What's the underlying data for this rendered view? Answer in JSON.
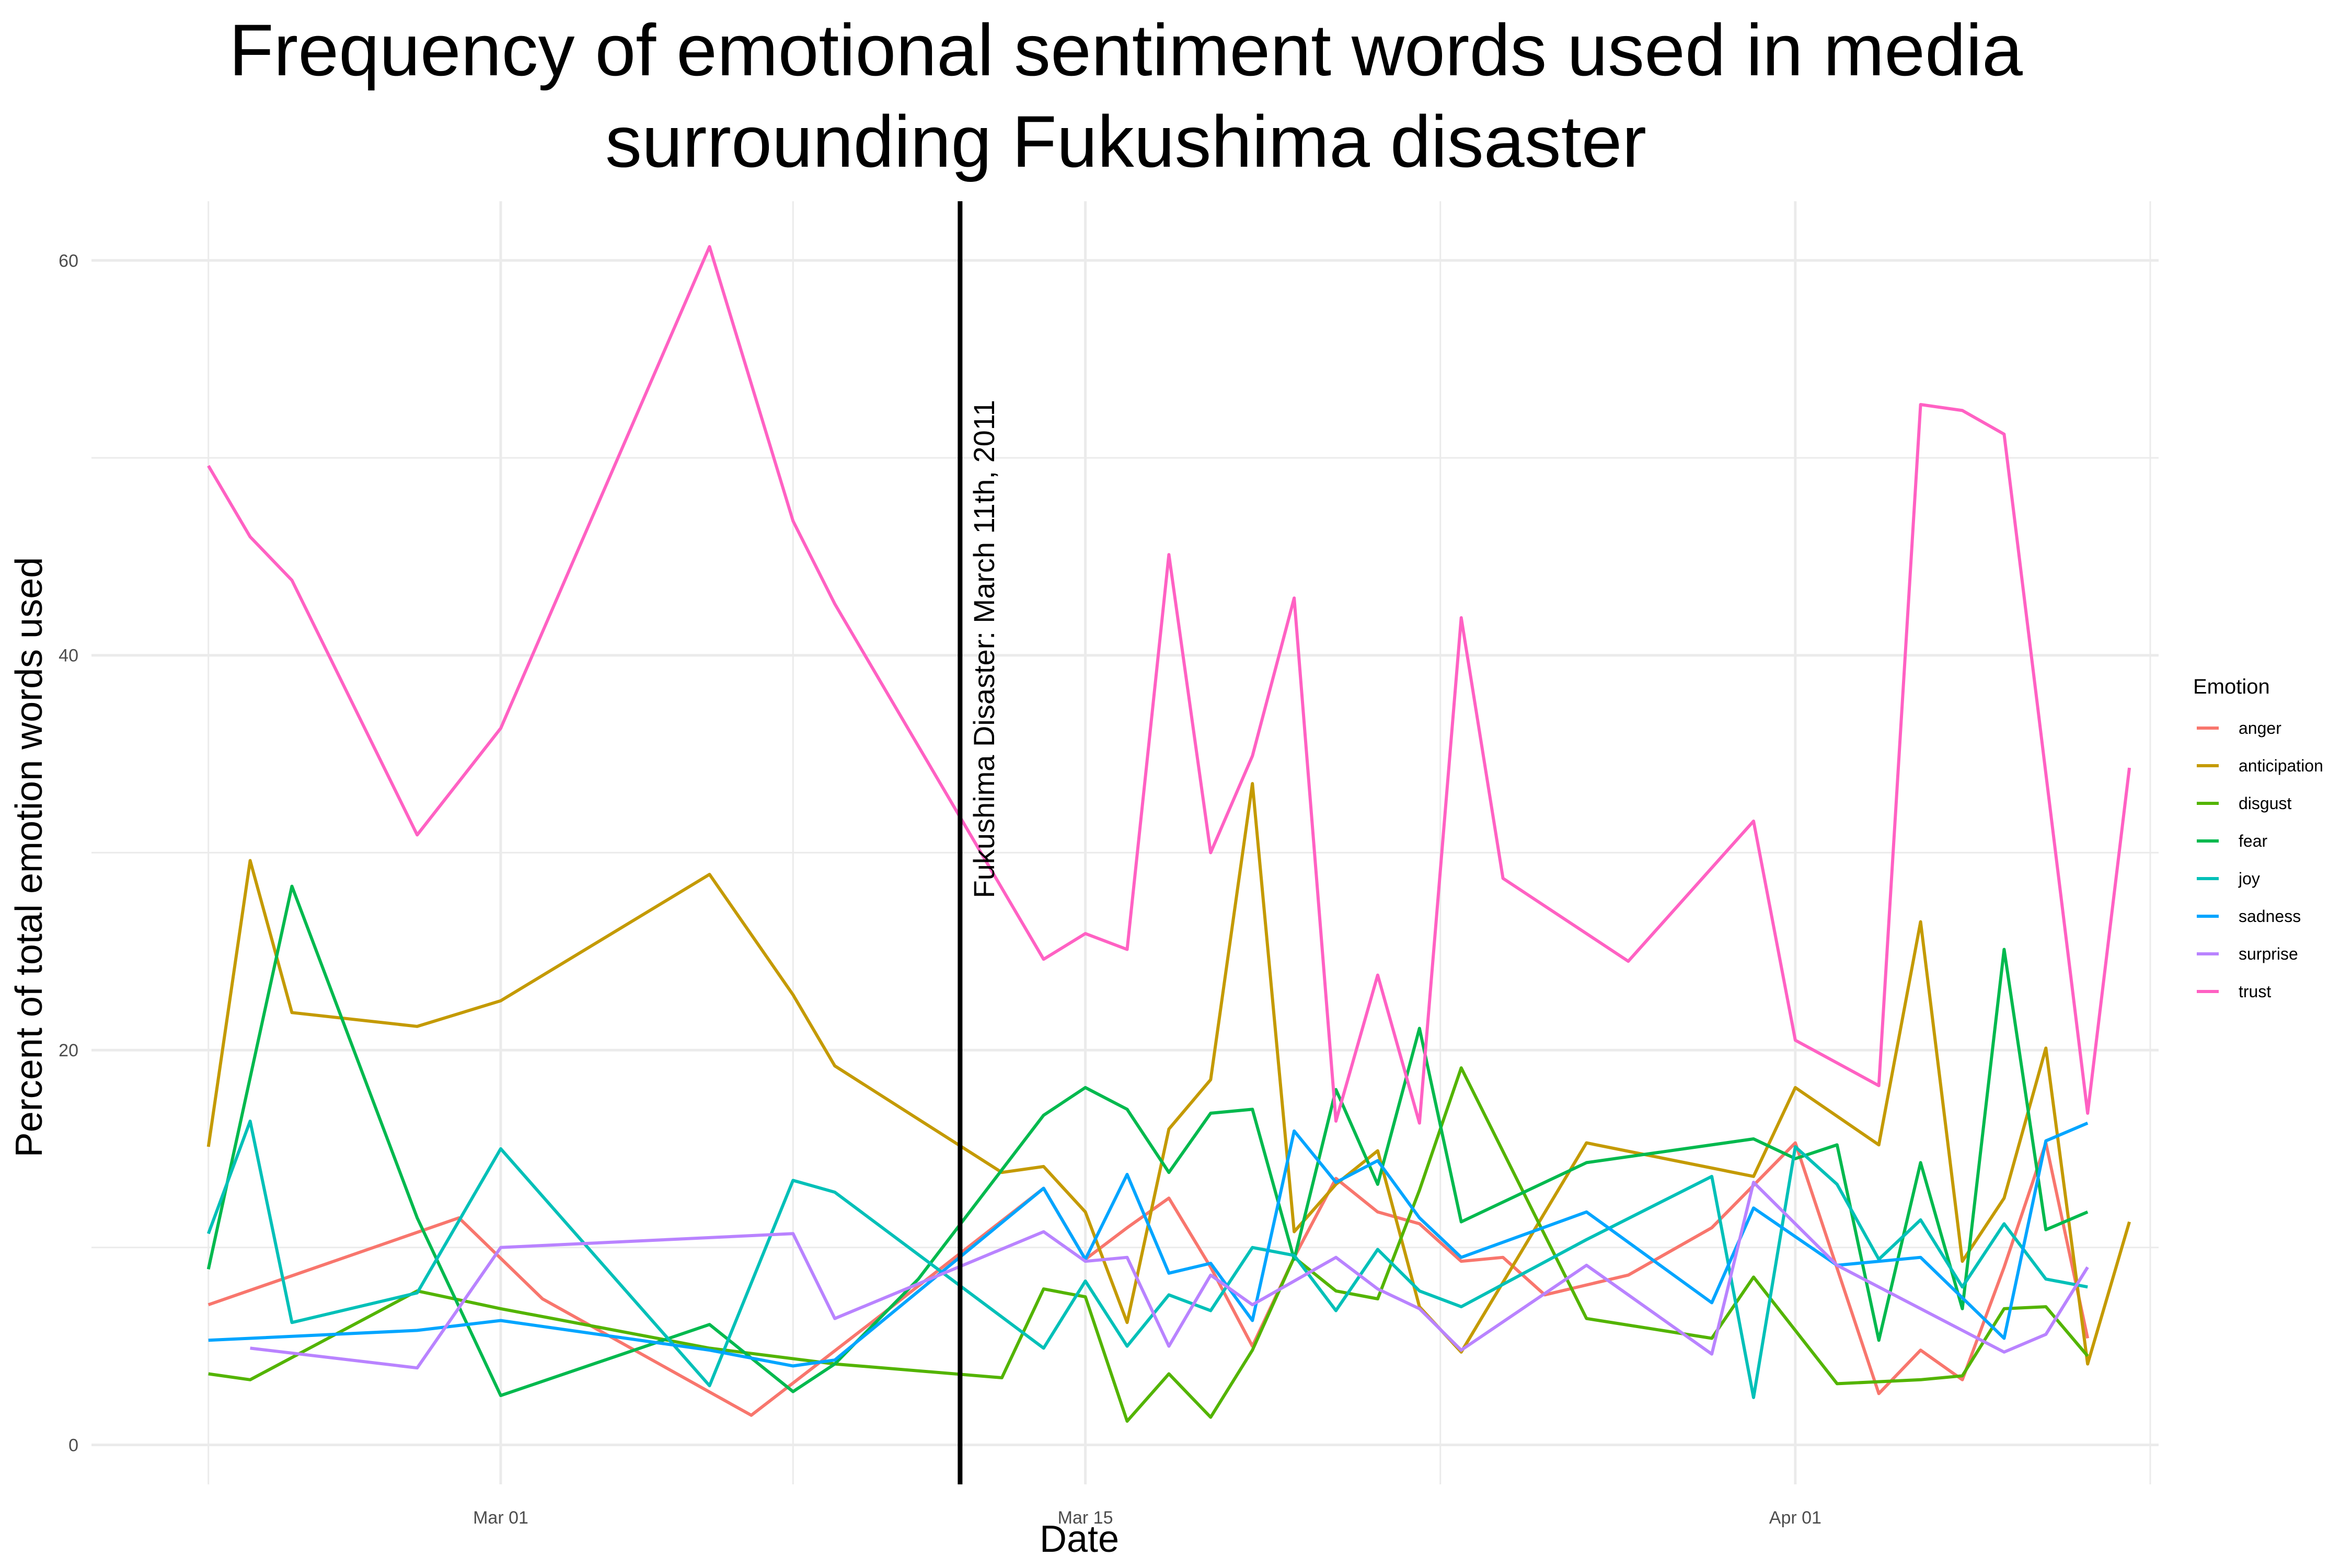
{
  "chart_data": {
    "type": "line",
    "title_lines": [
      "Frequency of emotional sentiment words used in media",
      "surrounding Fukushima disaster"
    ],
    "xlabel": "Date",
    "ylabel": "Percent of total emotion words used",
    "ylim": [
      -2,
      63
    ],
    "xlim_days": [
      -9.8,
      39.7
    ],
    "x_ticks": [
      {
        "day": 0,
        "label": "Mar 01"
      },
      {
        "day": 14,
        "label": "Mar 15"
      },
      {
        "day": 31,
        "label": "Apr 01"
      }
    ],
    "y_ticks": [
      0,
      20,
      40,
      60
    ],
    "grid": true,
    "legend": {
      "title": "Emotion",
      "position": "right"
    },
    "annotation": {
      "day": 11,
      "label": "Fukushima Disaster: March 11th, 2011"
    },
    "series": [
      {
        "name": "anger",
        "color": "#F8766D",
        "x": [
          "Feb 22",
          "Feb 28",
          "Mar 02",
          "Mar 07",
          "Mar 10",
          "Mar 14",
          "Mar 15",
          "Mar 16",
          "Mar 17",
          "Mar 18",
          "Mar 19",
          "Mar 20",
          "Mar 21",
          "Mar 22",
          "Mar 23",
          "Mar 24",
          "Mar 25",
          "Mar 26",
          "Mar 27",
          "Mar 28",
          "Mar 30",
          "Apr 01",
          "Apr 03",
          "Apr 04",
          "Apr 05",
          "Apr 06",
          "Apr 07",
          "Apr 08"
        ],
        "y": [
          7.1,
          11.5,
          7.4,
          1.5,
          6.4,
          13.0,
          9.4,
          11.0,
          12.5,
          9.0,
          5.0,
          9.5,
          13.5,
          11.8,
          11.2,
          9.3,
          9.5,
          7.6,
          8.1,
          8.6,
          11.0,
          15.3,
          2.6,
          4.8,
          3.3,
          9.0,
          15.3,
          5.4
        ]
      },
      {
        "name": "anticipation",
        "color": "#C49A00",
        "x": [
          "Feb 22",
          "Feb 23",
          "Feb 24",
          "Feb 27",
          "Mar 01",
          "Mar 06",
          "Mar 08",
          "Mar 09",
          "Mar 13",
          "Mar 14",
          "Mar 15",
          "Mar 16",
          "Mar 17",
          "Mar 18",
          "Mar 19",
          "Mar 20",
          "Mar 21",
          "Mar 22",
          "Mar 23",
          "Mar 24",
          "Mar 27",
          "Mar 31",
          "Apr 01",
          "Apr 03",
          "Apr 04",
          "Apr 05",
          "Apr 06",
          "Apr 07",
          "Apr 08",
          "Apr 09"
        ],
        "y": [
          15.1,
          29.6,
          21.9,
          21.2,
          22.5,
          28.9,
          22.8,
          19.2,
          13.8,
          14.1,
          11.8,
          6.2,
          16.0,
          18.5,
          33.5,
          10.8,
          13.2,
          14.9,
          7.0,
          4.7,
          15.3,
          13.6,
          18.1,
          15.2,
          26.5,
          9.3,
          12.5,
          20.1,
          4.1,
          11.3
        ]
      },
      {
        "name": "disgust",
        "color": "#53B400",
        "x": [
          "Feb 22",
          "Feb 23",
          "Feb 27",
          "Mar 01",
          "Mar 06",
          "Mar 09",
          "Mar 13",
          "Mar 14",
          "Mar 15",
          "Mar 16",
          "Mar 17",
          "Mar 18",
          "Mar 19",
          "Mar 20",
          "Mar 21",
          "Mar 22",
          "Mar 23",
          "Mar 24",
          "Mar 27",
          "Mar 30",
          "Mar 31",
          "Apr 02",
          "Apr 04",
          "Apr 05",
          "Apr 06",
          "Apr 07",
          "Apr 08"
        ],
        "y": [
          3.6,
          3.3,
          7.8,
          6.9,
          4.9,
          4.1,
          3.4,
          7.9,
          7.5,
          1.2,
          3.6,
          1.4,
          4.8,
          9.5,
          7.8,
          7.4,
          12.9,
          19.1,
          6.4,
          5.4,
          8.5,
          3.1,
          3.3,
          3.5,
          6.9,
          7.0,
          4.5
        ]
      },
      {
        "name": "fear",
        "color": "#00B94E",
        "x": [
          "Feb 22",
          "Feb 24",
          "Feb 27",
          "Mar 01",
          "Mar 06",
          "Mar 08",
          "Mar 09",
          "Mar 11",
          "Mar 14",
          "Mar 15",
          "Mar 16",
          "Mar 17",
          "Mar 18",
          "Mar 19",
          "Mar 20",
          "Mar 21",
          "Mar 22",
          "Mar 23",
          "Mar 24",
          "Mar 27",
          "Mar 30",
          "Mar 31",
          "Apr 01",
          "Apr 02",
          "Apr 03",
          "Apr 04",
          "Apr 05",
          "Apr 06",
          "Apr 07",
          "Apr 08"
        ],
        "y": [
          8.9,
          28.3,
          11.5,
          2.5,
          6.1,
          2.7,
          4.1,
          8.4,
          16.7,
          18.1,
          17.0,
          13.8,
          16.8,
          17.0,
          9.4,
          18.0,
          13.2,
          21.1,
          11.3,
          14.3,
          15.2,
          15.5,
          14.5,
          15.2,
          5.3,
          14.3,
          6.9,
          25.1,
          10.9,
          11.8
        ]
      },
      {
        "name": "joy",
        "color": "#00C0B8",
        "x": [
          "Feb 22",
          "Feb 23",
          "Feb 24",
          "Feb 27",
          "Mar 01",
          "Mar 06",
          "Mar 08",
          "Mar 09",
          "Mar 14",
          "Mar 15",
          "Mar 16",
          "Mar 17",
          "Mar 18",
          "Mar 19",
          "Mar 20",
          "Mar 21",
          "Mar 22",
          "Mar 23",
          "Mar 24",
          "Mar 27",
          "Mar 30",
          "Mar 31",
          "Apr 01",
          "Apr 02",
          "Apr 03",
          "Apr 04",
          "Apr 05",
          "Apr 06",
          "Apr 07",
          "Apr 08"
        ],
        "y": [
          10.7,
          16.4,
          6.2,
          7.7,
          15.0,
          3.0,
          13.4,
          12.8,
          4.9,
          8.3,
          5.0,
          7.6,
          6.8,
          10.0,
          9.6,
          6.8,
          9.9,
          7.8,
          7.0,
          10.4,
          13.6,
          2.4,
          15.1,
          13.2,
          9.4,
          11.4,
          8.0,
          11.2,
          8.4,
          8.0
        ]
      },
      {
        "name": "sadness",
        "color": "#00A5FF",
        "x": [
          "Feb 22",
          "Feb 27",
          "Mar 01",
          "Mar 06",
          "Mar 08",
          "Mar 09",
          "Mar 14",
          "Mar 15",
          "Mar 16",
          "Mar 17",
          "Mar 18",
          "Mar 19",
          "Mar 20",
          "Mar 21",
          "Mar 22",
          "Mar 23",
          "Mar 24",
          "Mar 27",
          "Mar 30",
          "Mar 31",
          "Apr 02",
          "Apr 04",
          "Apr 06",
          "Apr 07",
          "Apr 08"
        ],
        "y": [
          5.3,
          5.8,
          6.3,
          4.8,
          4.0,
          4.3,
          13.0,
          9.4,
          13.7,
          8.7,
          9.2,
          6.3,
          15.9,
          13.3,
          14.4,
          11.5,
          9.5,
          11.8,
          7.2,
          12.0,
          9.1,
          9.5,
          5.4,
          15.4,
          16.3
        ]
      },
      {
        "name": "surprise",
        "color": "#B983FF",
        "x": [
          "Feb 23",
          "Feb 27",
          "Mar 01",
          "Mar 08",
          "Mar 09",
          "Mar 14",
          "Mar 15",
          "Mar 16",
          "Mar 17",
          "Mar 18",
          "Mar 19",
          "Mar 20",
          "Mar 21",
          "Mar 22",
          "Mar 23",
          "Mar 24",
          "Mar 27",
          "Mar 30",
          "Mar 31",
          "Apr 02",
          "Apr 05",
          "Apr 06",
          "Apr 07",
          "Apr 08"
        ],
        "y": [
          4.9,
          3.9,
          10.0,
          10.7,
          6.4,
          10.8,
          9.3,
          9.5,
          5.0,
          8.6,
          7.1,
          8.3,
          9.5,
          7.9,
          6.9,
          4.8,
          9.1,
          4.6,
          13.3,
          9.1,
          5.8,
          4.7,
          5.6,
          9.0
        ]
      },
      {
        "name": "trust",
        "color": "#FF61C3",
        "x": [
          "Feb 22",
          "Feb 23",
          "Feb 24",
          "Feb 27",
          "Mar 01",
          "Mar 06",
          "Mar 08",
          "Mar 09",
          "Mar 14",
          "Mar 15",
          "Mar 16",
          "Mar 17",
          "Mar 18",
          "Mar 19",
          "Mar 20",
          "Mar 21",
          "Mar 22",
          "Mar 23",
          "Mar 24",
          "Mar 25",
          "Mar 28",
          "Mar 31",
          "Apr 01",
          "Apr 03",
          "Apr 04",
          "Apr 05",
          "Apr 06",
          "Apr 07",
          "Apr 08",
          "Apr 09"
        ],
        "y": [
          49.6,
          46.0,
          43.8,
          30.9,
          36.3,
          60.7,
          46.8,
          42.6,
          24.6,
          25.9,
          25.1,
          45.1,
          30.0,
          34.9,
          42.9,
          16.4,
          23.8,
          16.3,
          41.9,
          28.7,
          24.5,
          31.6,
          20.5,
          18.2,
          52.7,
          52.4,
          51.2,
          34.0,
          16.8,
          34.3
        ]
      }
    ]
  }
}
